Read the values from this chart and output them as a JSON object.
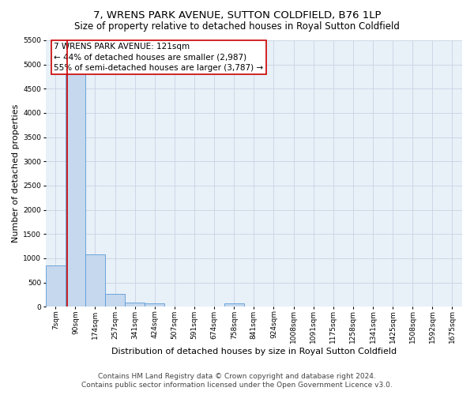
{
  "title": "7, WRENS PARK AVENUE, SUTTON COLDFIELD, B76 1LP",
  "subtitle": "Size of property relative to detached houses in Royal Sutton Coldfield",
  "xlabel": "Distribution of detached houses by size in Royal Sutton Coldfield",
  "ylabel": "Number of detached properties",
  "footer_line1": "Contains HM Land Registry data © Crown copyright and database right 2024.",
  "footer_line2": "Contains public sector information licensed under the Open Government Licence v3.0.",
  "annotation_title": "7 WRENS PARK AVENUE: 121sqm",
  "annotation_line1": "← 44% of detached houses are smaller (2,987)",
  "annotation_line2": "55% of semi-detached houses are larger (3,787) →",
  "bar_categories": [
    "7sqm",
    "90sqm",
    "174sqm",
    "257sqm",
    "341sqm",
    "424sqm",
    "507sqm",
    "591sqm",
    "674sqm",
    "758sqm",
    "841sqm",
    "924sqm",
    "1008sqm",
    "1091sqm",
    "1175sqm",
    "1258sqm",
    "1341sqm",
    "1425sqm",
    "1508sqm",
    "1592sqm",
    "1675sqm"
  ],
  "bar_values": [
    850,
    5500,
    1080,
    270,
    90,
    60,
    0,
    0,
    0,
    60,
    0,
    0,
    0,
    0,
    0,
    0,
    0,
    0,
    0,
    0,
    0
  ],
  "bar_color": "#c5d8ee",
  "bar_edge_color": "#5b9bd5",
  "vline_color": "#cc0000",
  "vline_x": 0.575,
  "annotation_box_color": "#cc0000",
  "ylim": [
    0,
    5500
  ],
  "yticks": [
    0,
    500,
    1000,
    1500,
    2000,
    2500,
    3000,
    3500,
    4000,
    4500,
    5000,
    5500
  ],
  "background_color": "#ffffff",
  "grid_color": "#c8d4e3",
  "title_fontsize": 9.5,
  "subtitle_fontsize": 8.5,
  "ylabel_fontsize": 8,
  "xlabel_fontsize": 8,
  "tick_fontsize": 6.5,
  "annotation_fontsize": 7.5,
  "footer_fontsize": 6.5
}
